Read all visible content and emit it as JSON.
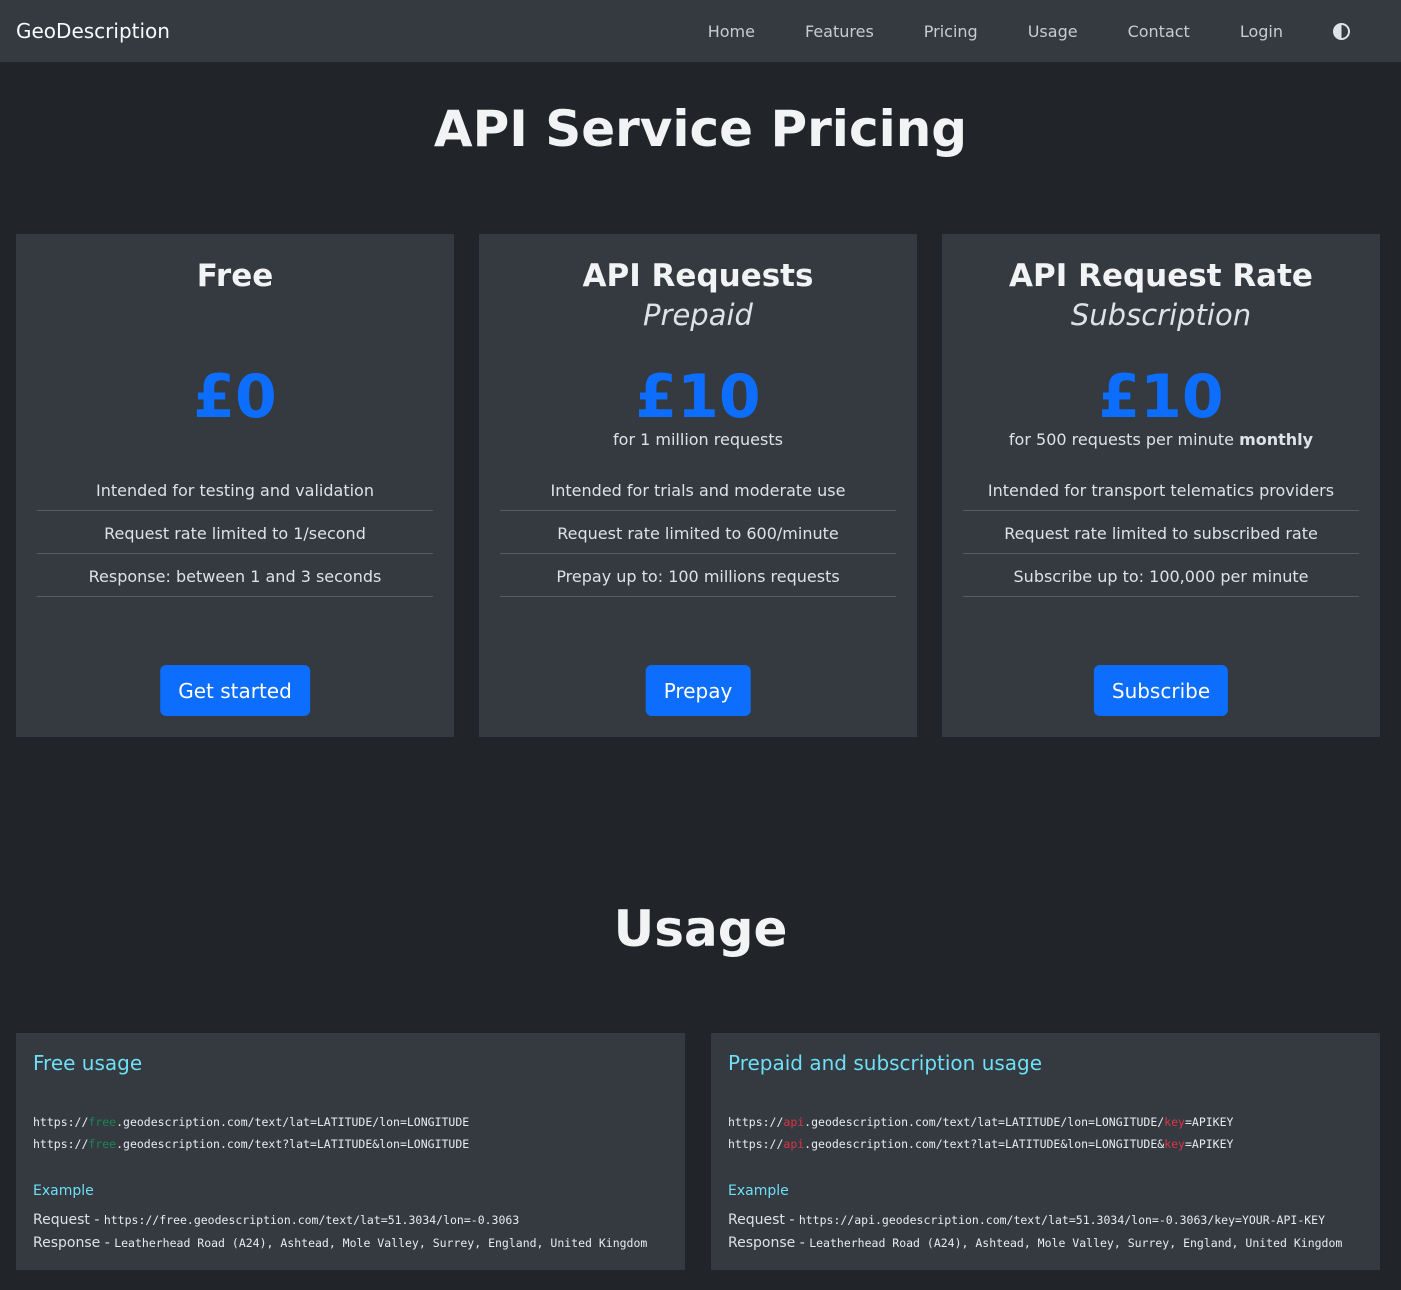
{
  "nav": {
    "brand": "GeoDescription",
    "links": [
      "Home",
      "Features",
      "Pricing",
      "Usage",
      "Contact",
      "Login"
    ],
    "theme_icon": "contrast-icon"
  },
  "pricing": {
    "title": "API Service Pricing",
    "plans": [
      {
        "name": "Free",
        "subtitle": "",
        "price": "£0",
        "note": "",
        "features": [
          "Intended for testing and validation",
          "Request rate limited to 1/second",
          "Response: between 1 and 3 seconds"
        ],
        "button": "Get started"
      },
      {
        "name": "API Requests",
        "subtitle": "Prepaid",
        "price": "£10",
        "note": "for 1 million requests",
        "features": [
          "Intended for trials and moderate use",
          "Request rate limited to 600/minute",
          "Prepay up to: 100 millions requests"
        ],
        "button": "Prepay"
      },
      {
        "name": "API Request Rate",
        "subtitle": "Subscription",
        "price": "£10",
        "note": "for 500 requests per minute",
        "note_bold": "monthly",
        "features": [
          "Intended for transport telematics providers",
          "Request rate limited to subscribed rate",
          "Subscribe up to: 100,000 per minute"
        ],
        "button": "Subscribe"
      }
    ]
  },
  "usage": {
    "title": "Usage",
    "free": {
      "title": "Free usage",
      "scheme": "https://",
      "host_highlight": "free",
      "line1_rest": ".geodescription.com/text/lat=LATITUDE/lon=LONGITUDE",
      "line2_rest": ".geodescription.com/text?lat=LATITUDE&lon=LONGITUDE",
      "example": "Example",
      "request_label": "Request - ",
      "request": "https://free.geodescription.com/text/lat=51.3034/lon=-0.3063",
      "response_label": "Response - ",
      "response": "Leatherhead Road (A24), Ashtead, Mole Valley, Surrey, England, United Kingdom"
    },
    "paid": {
      "title": "Prepaid and subscription usage",
      "scheme": "https://",
      "host_highlight": "api",
      "line1_mid": ".geodescription.com/text/lat=LATITUDE/lon=LONGITUDE/",
      "line2_mid": ".geodescription.com/text?lat=LATITUDE&lon=LONGITUDE&",
      "key_highlight": "key",
      "key_rest": "=APIKEY",
      "example": "Example",
      "request_label": "Request - ",
      "request": "https://api.geodescription.com/text/lat=51.3034/lon=-0.3063/key=YOUR-API-KEY",
      "response_label": "Response - ",
      "response": "Leatherhead Road (A24), Ashtead, Mole Valley, Surrey, England, United Kingdom"
    }
  },
  "colors": {
    "accent": "#0d6efd",
    "info": "#6edff6",
    "free_highlight": "#198754",
    "key_highlight": "#dc3545"
  }
}
